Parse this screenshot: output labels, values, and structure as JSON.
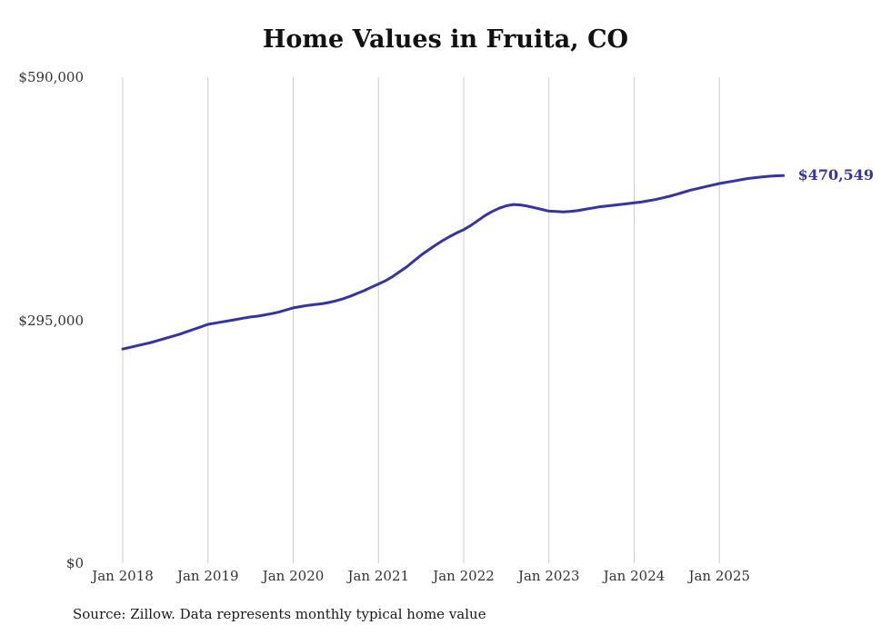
{
  "title": "Home Values in Fruita, CO",
  "source_note": "Source: Zillow. Data represents monthly typical home value",
  "colors": {
    "line": "#3533a8",
    "grid": "#cccccc",
    "text": "#333333",
    "title_text": "#111111"
  },
  "chart_data": {
    "type": "line",
    "title": "Home Values in Fruita, CO",
    "xlabel": "",
    "ylabel": "",
    "grid": "vertical-only",
    "ylim": [
      0,
      590000
    ],
    "y_ticks": [
      {
        "label": "$0",
        "value": 0
      },
      {
        "label": "$295,000",
        "value": 295000
      },
      {
        "label": "$590,000",
        "value": 590000
      }
    ],
    "x_tick_labels": [
      "Jan 2018",
      "Jan 2019",
      "Jan 2020",
      "Jan 2021",
      "Jan 2022",
      "Jan 2023",
      "Jan 2024",
      "Jan 2025"
    ],
    "x_monthly_start": "Jan 2018",
    "x_monthly_end": "Oct 2025",
    "series": [
      {
        "name": "Typical home value",
        "monthly_values": [
          260000,
          262000,
          264000,
          266000,
          268000,
          270500,
          273000,
          275500,
          278000,
          281000,
          284000,
          287000,
          290000,
          291500,
          293000,
          294500,
          296000,
          297500,
          299000,
          300000,
          301500,
          303000,
          305000,
          307500,
          310000,
          311500,
          313000,
          314000,
          315000,
          316500,
          318500,
          321000,
          324000,
          327500,
          331000,
          335000,
          339000,
          343000,
          348000,
          354000,
          360000,
          367000,
          374000,
          380000,
          386000,
          391500,
          396500,
          401000,
          405000,
          410000,
          416000,
          422000,
          427000,
          431000,
          434000,
          435500,
          435000,
          433500,
          431500,
          429500,
          427500,
          427000,
          426500,
          427000,
          428000,
          429500,
          431000,
          432500,
          433500,
          434500,
          435500,
          436500,
          437500,
          438500,
          440000,
          441500,
          443500,
          445500,
          448000,
          450500,
          453000,
          455000,
          457000,
          459000,
          461000,
          462500,
          464000,
          465500,
          467000,
          468000,
          469000,
          469800,
          470300,
          470549
        ]
      }
    ],
    "last_point": {
      "label": "$470,549",
      "value": 470549,
      "date": "Oct 2025"
    },
    "source": "Source: Zillow. Data represents monthly typical home value"
  }
}
